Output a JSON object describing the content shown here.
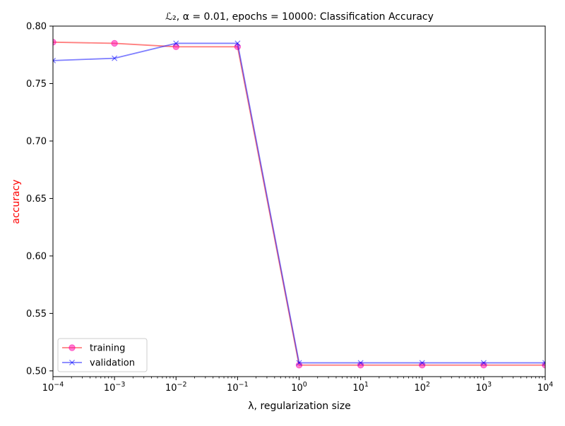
{
  "chart_data": {
    "type": "line",
    "title": "ℒ₂, α = 0.01, epochs = 10000: Classification Accuracy",
    "xlabel": "λ, regularization size",
    "ylabel": "accuracy",
    "x_scale": "log",
    "x": [
      0.0001,
      0.001,
      0.01,
      0.1,
      1,
      10,
      100,
      1000,
      10000
    ],
    "xlim": [
      0.0001,
      10000
    ],
    "ylim": [
      0.495,
      0.8
    ],
    "x_ticks": [
      0.0001,
      0.001,
      0.01,
      0.1,
      1,
      10,
      100,
      1000,
      10000
    ],
    "x_tick_labels": [
      {
        "base": "10",
        "exp": "−4"
      },
      {
        "base": "10",
        "exp": "−3"
      },
      {
        "base": "10",
        "exp": "−2"
      },
      {
        "base": "10",
        "exp": "−1"
      },
      {
        "base": "10",
        "exp": "0"
      },
      {
        "base": "10",
        "exp": "1"
      },
      {
        "base": "10",
        "exp": "2"
      },
      {
        "base": "10",
        "exp": "3"
      },
      {
        "base": "10",
        "exp": "4"
      }
    ],
    "y_ticks": [
      0.5,
      0.55,
      0.6,
      0.65,
      0.7,
      0.75,
      0.8
    ],
    "y_tick_labels": [
      "0.50",
      "0.55",
      "0.60",
      "0.65",
      "0.70",
      "0.75",
      "0.80"
    ],
    "grid": false,
    "legend_position": "lower-left",
    "ylabel_color": "#ff0000",
    "series": [
      {
        "name": "training",
        "marker": "circle",
        "color": "#ff0000",
        "marker_color": "#ff00aa",
        "values": [
          0.786,
          0.785,
          0.782,
          0.782,
          0.505,
          0.505,
          0.505,
          0.505,
          0.505
        ]
      },
      {
        "name": "validation",
        "marker": "x",
        "color": "#0000ff",
        "values": [
          0.77,
          0.772,
          0.785,
          0.785,
          0.507,
          0.507,
          0.507,
          0.507,
          0.507
        ]
      }
    ]
  }
}
